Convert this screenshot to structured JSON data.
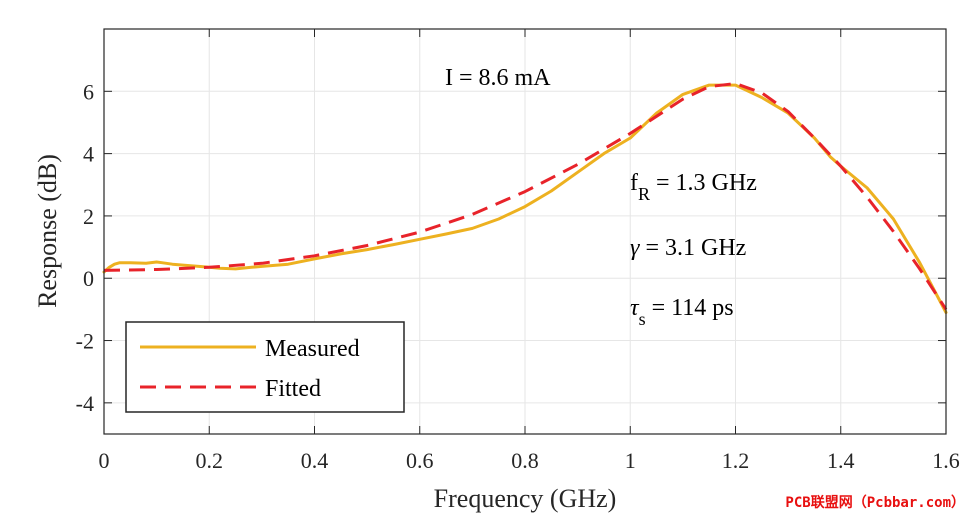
{
  "chart_data": {
    "type": "line",
    "title": "",
    "xlabel": "Frequency (GHz)",
    "ylabel": "Response (dB)",
    "xlim": [
      0,
      1.6
    ],
    "ylim": [
      -5,
      8
    ],
    "xticks": [
      0,
      0.2,
      0.4,
      0.6,
      0.8,
      1,
      1.2,
      1.4,
      1.6
    ],
    "xtick_labels": [
      "0",
      "0.2",
      "0.4",
      "0.6",
      "0.8",
      "1",
      "1.2",
      "1.4",
      "1.6"
    ],
    "yticks": [
      -4,
      -2,
      0,
      2,
      4,
      6
    ],
    "ytick_labels": [
      "-4",
      "-2",
      "0",
      "2",
      "4",
      "6"
    ],
    "grid": true,
    "legend_position": "bottom-left",
    "series": [
      {
        "name": "Measured",
        "color": "#EDB120",
        "style": "solid",
        "x": [
          0,
          0.01,
          0.02,
          0.03,
          0.05,
          0.08,
          0.1,
          0.11,
          0.13,
          0.15,
          0.18,
          0.2,
          0.22,
          0.25,
          0.28,
          0.3,
          0.35,
          0.4,
          0.45,
          0.5,
          0.55,
          0.6,
          0.65,
          0.7,
          0.75,
          0.8,
          0.85,
          0.9,
          0.95,
          1.0,
          1.05,
          1.1,
          1.15,
          1.2,
          1.25,
          1.3,
          1.35,
          1.38,
          1.4,
          1.45,
          1.5,
          1.55,
          1.6
        ],
        "values": [
          0.2,
          0.35,
          0.45,
          0.5,
          0.5,
          0.48,
          0.52,
          0.5,
          0.45,
          0.42,
          0.38,
          0.35,
          0.32,
          0.3,
          0.35,
          0.38,
          0.45,
          0.62,
          0.78,
          0.92,
          1.08,
          1.25,
          1.42,
          1.6,
          1.9,
          2.3,
          2.8,
          3.4,
          4.0,
          4.5,
          5.3,
          5.9,
          6.2,
          6.2,
          5.8,
          5.3,
          4.5,
          3.9,
          3.6,
          2.9,
          1.9,
          0.5,
          -1.1
        ]
      },
      {
        "name": "Fitted",
        "color": "#E8232A",
        "style": "dashed",
        "x": [
          0,
          0.1,
          0.2,
          0.3,
          0.4,
          0.5,
          0.6,
          0.7,
          0.8,
          0.9,
          1.0,
          1.1,
          1.15,
          1.2,
          1.25,
          1.3,
          1.35,
          1.4,
          1.45,
          1.5,
          1.55,
          1.6
        ],
        "values": [
          0.25,
          0.28,
          0.35,
          0.48,
          0.72,
          1.05,
          1.48,
          2.05,
          2.78,
          3.65,
          4.65,
          5.75,
          6.15,
          6.25,
          5.95,
          5.35,
          4.5,
          3.6,
          2.6,
          1.5,
          0.3,
          -1.0
        ]
      }
    ],
    "annotations": {
      "current": "I = 8.6 mA",
      "fr_label": "f",
      "fr_sub": "R",
      "fr_value": " = 1.3 GHz",
      "gamma_label": "γ",
      "gamma_value": " = 3.1 GHz",
      "tau_label": "τ",
      "tau_sub": "s",
      "tau_value": " = 114 ps"
    }
  },
  "watermark": "PCB联盟网（Pcbbar.com）"
}
